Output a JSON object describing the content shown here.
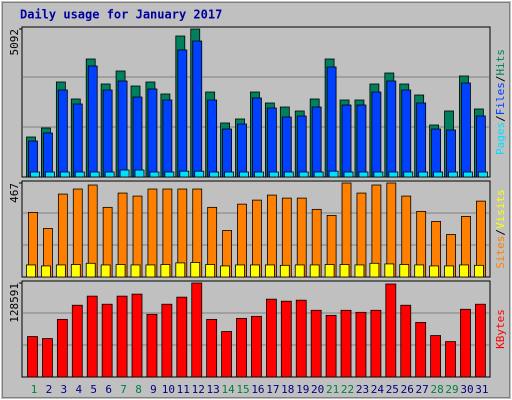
{
  "chart_data": [
    {
      "type": "bar",
      "title": "Daily usage for January 2017",
      "legend_separator": "/",
      "ylim": [
        0,
        5092
      ],
      "yticks": [
        5092
      ],
      "series": [
        {
          "name": "Hits",
          "color": "#00805c",
          "values": [
            1376,
            1686,
            3269,
            2684,
            4060,
            3200,
            3647,
            3131,
            3269,
            2856,
            4851,
            5092,
            2924,
            1858,
            1996,
            2924,
            2546,
            2408,
            2271,
            2684,
            4060,
            2649,
            2649,
            3200,
            3578,
            3200,
            2821,
            1789,
            2271,
            3475,
            2340
          ]
        },
        {
          "name": "Files",
          "color": "#0040ff",
          "values": [
            1239,
            1514,
            2993,
            2512,
            3819,
            2993,
            3303,
            2752,
            3028,
            2649,
            4370,
            4679,
            2649,
            1651,
            1824,
            2718,
            2374,
            2064,
            2099,
            2408,
            3785,
            2477,
            2477,
            2924,
            3303,
            2993,
            2546,
            1651,
            1617,
            3234,
            2099
          ]
        },
        {
          "name": "Pages",
          "color": "#00e0ff",
          "values": [
            172,
            172,
            172,
            172,
            172,
            172,
            240,
            240,
            172,
            172,
            200,
            200,
            172,
            172,
            172,
            172,
            172,
            172,
            172,
            172,
            200,
            172,
            172,
            172,
            172,
            172,
            172,
            172,
            172,
            172,
            172
          ]
        }
      ]
    },
    {
      "type": "bar",
      "legend_separator": "/",
      "ylim": [
        0,
        467
      ],
      "yticks": [
        467
      ],
      "series": [
        {
          "name": "Visits",
          "color": "#ffff00",
          "values": [
            60,
            55,
            60,
            62,
            68,
            60,
            62,
            60,
            60,
            62,
            70,
            72,
            62,
            55,
            60,
            60,
            60,
            58,
            60,
            60,
            62,
            62,
            60,
            68,
            65,
            62,
            60,
            55,
            55,
            60,
            58
          ]
        },
        {
          "name": "Sites",
          "color": "#ff8000",
          "values": [
            321,
            241,
            412,
            437,
            457,
            346,
            417,
            402,
            437,
            437,
            437,
            437,
            346,
            231,
            362,
            382,
            407,
            392,
            392,
            336,
            306,
            467,
            417,
            457,
            467,
            402,
            326,
            276,
            211,
            301,
            377
          ]
        }
      ]
    },
    {
      "type": "bar",
      "legend_separator": "/",
      "ylim": [
        0,
        128591
      ],
      "yticks": [
        128591
      ],
      "categories": [
        "1",
        "2",
        "3",
        "4",
        "5",
        "6",
        "7",
        "8",
        "9",
        "10",
        "11",
        "12",
        "13",
        "14",
        "15",
        "16",
        "17",
        "18",
        "19",
        "20",
        "21",
        "22",
        "23",
        "24",
        "25",
        "26",
        "27",
        "28",
        "29",
        "30",
        "31"
      ],
      "category_colors": [
        "#008040",
        "#000080",
        "#000080",
        "#000080",
        "#000080",
        "#000080",
        "#008040",
        "#008040",
        "#000080",
        "#000080",
        "#000080",
        "#000080",
        "#000080",
        "#008040",
        "#008040",
        "#000080",
        "#000080",
        "#000080",
        "#000080",
        "#000080",
        "#008040",
        "#008040",
        "#000080",
        "#000080",
        "#000080",
        "#000080",
        "#000080",
        "#008040",
        "#008040",
        "#000080",
        "#000080"
      ],
      "series": [
        {
          "name": "KBytes",
          "color": "#ff0000",
          "values": [
            55308,
            52542,
            78813,
            98172,
            110616,
            99555,
            110616,
            113381,
            85728,
            99555,
            109233,
            128591,
            78813,
            62222,
            80196,
            82962,
            106468,
            103702,
            105085,
            91258,
            84345,
            91258,
            88493,
            91258,
            127208,
            98172,
            74666,
            56690,
            48394,
            92640,
            99555
          ]
        }
      ]
    }
  ]
}
